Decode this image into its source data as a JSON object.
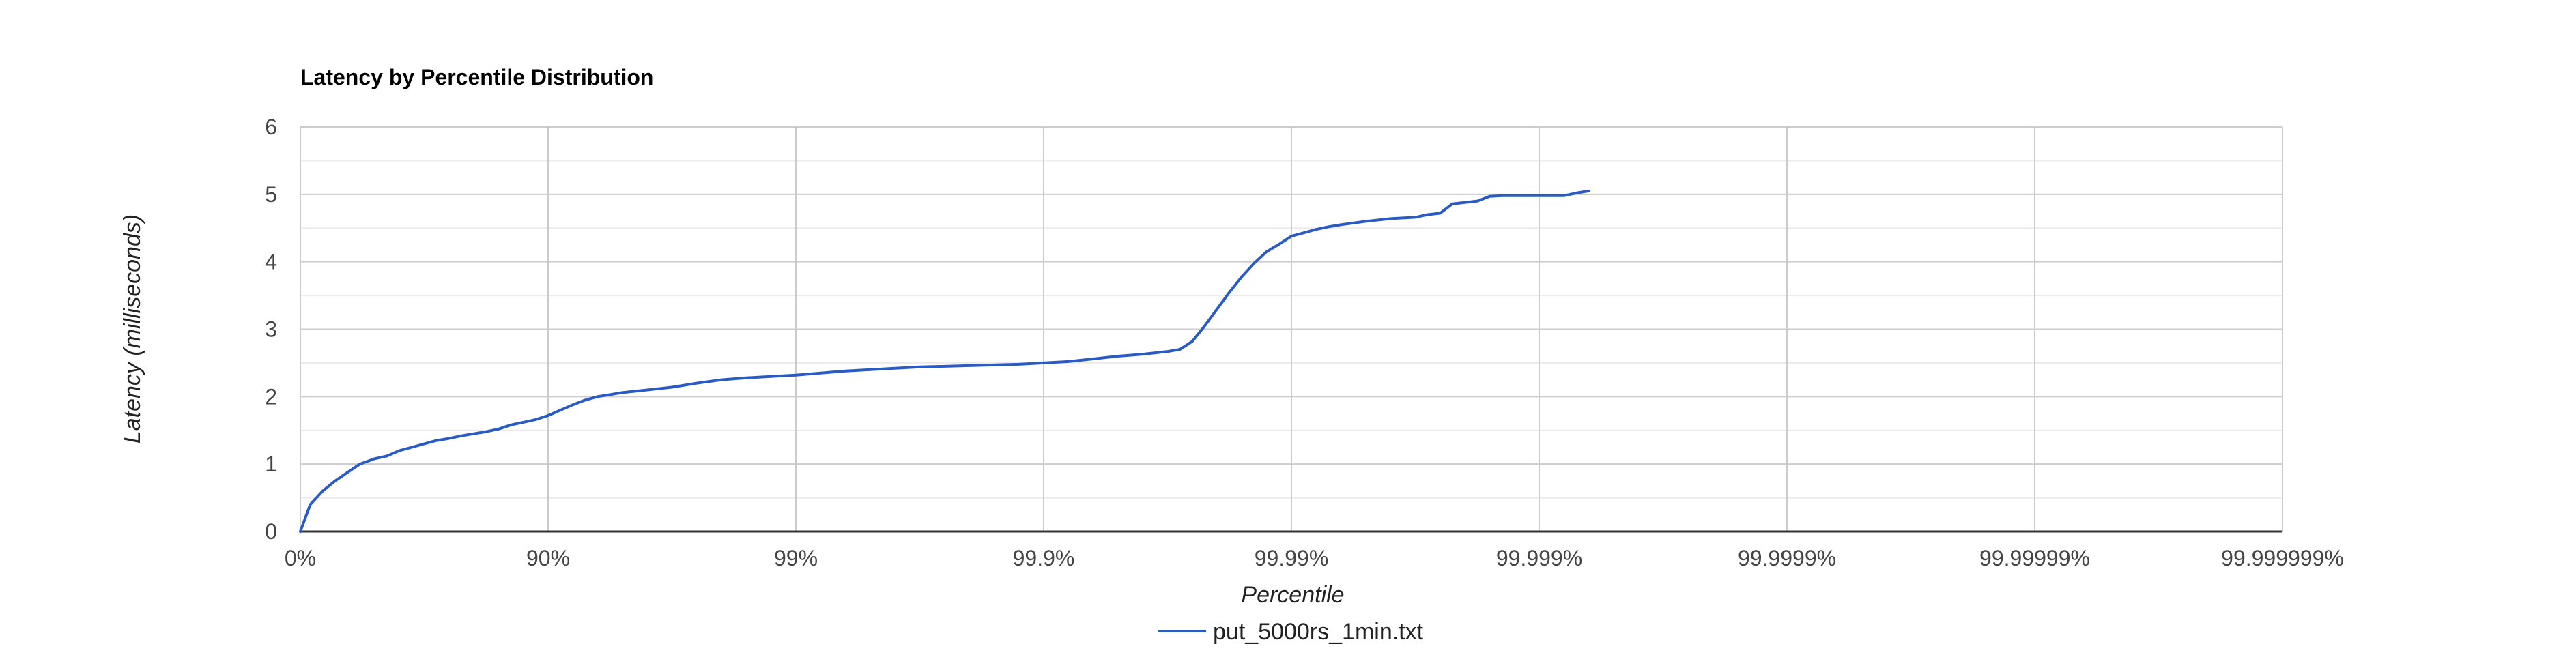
{
  "chart_data": {
    "type": "line",
    "title": "Latency by Percentile Distribution",
    "xlabel": "Percentile",
    "ylabel": "Latency (milliseconds)",
    "x_scale": "log-nines",
    "x_ticks": [
      "0%",
      "90%",
      "99%",
      "99.9%",
      "99.99%",
      "99.999%",
      "99.9999%",
      "99.99999%",
      "99.999999%"
    ],
    "y_ticks": [
      "0",
      "1",
      "2",
      "3",
      "4",
      "5",
      "6"
    ],
    "ylim": [
      0,
      6
    ],
    "xlim_nines": [
      0,
      8
    ],
    "grid": true,
    "minor_gridlines_y": true,
    "legend_position": "bottom",
    "series": [
      {
        "name": "put_5000rs_1min.txt",
        "color": "#2a5bc4",
        "x_nines": [
          0,
          0.04,
          0.09,
          0.14,
          0.2,
          0.24,
          0.3,
          0.35,
          0.4,
          0.45,
          0.5,
          0.55,
          0.6,
          0.65,
          0.7,
          0.75,
          0.8,
          0.85,
          0.9,
          0.95,
          1.0,
          1.05,
          1.1,
          1.15,
          1.2,
          1.3,
          1.4,
          1.5,
          1.6,
          1.7,
          1.8,
          1.9,
          2.0,
          2.1,
          2.2,
          2.3,
          2.4,
          2.5,
          2.6,
          2.7,
          2.8,
          2.9,
          3.0,
          3.1,
          3.2,
          3.3,
          3.4,
          3.5,
          3.55,
          3.6,
          3.65,
          3.7,
          3.75,
          3.8,
          3.85,
          3.9,
          3.95,
          4.0,
          4.05,
          4.1,
          4.15,
          4.2,
          4.3,
          4.4,
          4.5,
          4.55,
          4.6,
          4.65,
          4.7,
          4.75,
          4.8,
          4.85,
          4.9,
          4.95,
          5.0,
          5.1,
          5.15,
          5.2
        ],
        "y": [
          0.0,
          0.4,
          0.6,
          0.75,
          0.9,
          1.0,
          1.08,
          1.12,
          1.2,
          1.25,
          1.3,
          1.35,
          1.38,
          1.42,
          1.45,
          1.48,
          1.52,
          1.58,
          1.62,
          1.66,
          1.72,
          1.8,
          1.88,
          1.95,
          2.0,
          2.06,
          2.1,
          2.14,
          2.2,
          2.25,
          2.28,
          2.3,
          2.32,
          2.35,
          2.38,
          2.4,
          2.42,
          2.44,
          2.45,
          2.46,
          2.47,
          2.48,
          2.5,
          2.52,
          2.56,
          2.6,
          2.63,
          2.67,
          2.7,
          2.82,
          3.05,
          3.3,
          3.55,
          3.78,
          3.98,
          4.15,
          4.26,
          4.38,
          4.43,
          4.48,
          4.52,
          4.55,
          4.6,
          4.64,
          4.66,
          4.7,
          4.72,
          4.86,
          4.88,
          4.9,
          4.97,
          4.98,
          4.98,
          4.98,
          4.98,
          4.98,
          5.02,
          5.05
        ]
      }
    ]
  }
}
